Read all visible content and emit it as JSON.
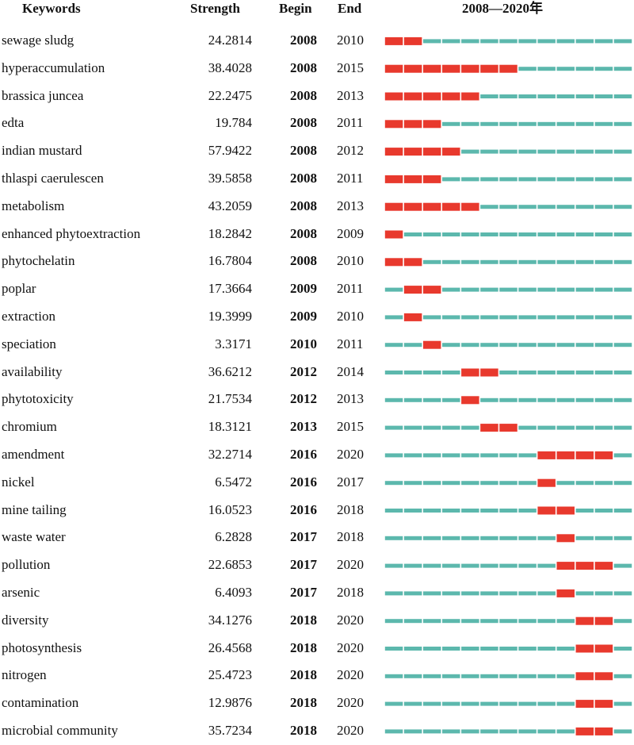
{
  "headers": {
    "keywords": "Keywords",
    "strength": "Strength",
    "begin": "Begin",
    "end": "End",
    "range": "2008—2020年"
  },
  "colors": {
    "burst": "#e8392d",
    "normal": "#5cb8ad"
  },
  "chart_data": {
    "type": "table",
    "title": "",
    "year_range": [
      2008,
      2020
    ],
    "columns": [
      "Keywords",
      "Strength",
      "Begin",
      "End"
    ],
    "rows": [
      {
        "keyword": "sewage sludg",
        "strength": "24.2814",
        "begin": "2008",
        "end": "2010"
      },
      {
        "keyword": "hyperaccumulation",
        "strength": "38.4028",
        "begin": "2008",
        "end": "2015"
      },
      {
        "keyword": "brassica juncea",
        "strength": "22.2475",
        "begin": "2008",
        "end": "2013"
      },
      {
        "keyword": "edta",
        "strength": "19.784",
        "begin": "2008",
        "end": "2011"
      },
      {
        "keyword": "indian mustard",
        "strength": "57.9422",
        "begin": "2008",
        "end": "2012"
      },
      {
        "keyword": "thlaspi caerulescen",
        "strength": "39.5858",
        "begin": "2008",
        "end": "2011"
      },
      {
        "keyword": "metabolism",
        "strength": "43.2059",
        "begin": "2008",
        "end": "2013"
      },
      {
        "keyword": "enhanced phytoextraction",
        "strength": "18.2842",
        "begin": "2008",
        "end": "2009"
      },
      {
        "keyword": "phytochelatin",
        "strength": "16.7804",
        "begin": "2008",
        "end": "2010"
      },
      {
        "keyword": "poplar",
        "strength": "17.3664",
        "begin": "2009",
        "end": "2011"
      },
      {
        "keyword": "extraction",
        "strength": "19.3999",
        "begin": "2009",
        "end": "2010"
      },
      {
        "keyword": "speciation",
        "strength": "3.3171",
        "begin": "2010",
        "end": "2011"
      },
      {
        "keyword": "availability",
        "strength": "36.6212",
        "begin": "2012",
        "end": "2014"
      },
      {
        "keyword": "phytotoxicity",
        "strength": "21.7534",
        "begin": "2012",
        "end": "2013"
      },
      {
        "keyword": "chromium",
        "strength": "18.3121",
        "begin": "2013",
        "end": "2015"
      },
      {
        "keyword": "amendment",
        "strength": "32.2714",
        "begin": "2016",
        "end": "2020"
      },
      {
        "keyword": "nickel",
        "strength": "6.5472",
        "begin": "2016",
        "end": "2017"
      },
      {
        "keyword": "mine tailing",
        "strength": "16.0523",
        "begin": "2016",
        "end": "2018"
      },
      {
        "keyword": "waste water",
        "strength": "6.2828",
        "begin": "2017",
        "end": "2018"
      },
      {
        "keyword": "pollution",
        "strength": "22.6853",
        "begin": "2017",
        "end": "2020"
      },
      {
        "keyword": "arsenic",
        "strength": "6.4093",
        "begin": "2017",
        "end": "2018"
      },
      {
        "keyword": "diversity",
        "strength": "34.1276",
        "begin": "2018",
        "end": "2020"
      },
      {
        "keyword": "photosynthesis",
        "strength": "26.4568",
        "begin": "2018",
        "end": "2020"
      },
      {
        "keyword": "nitrogen",
        "strength": "25.4723",
        "begin": "2018",
        "end": "2020"
      },
      {
        "keyword": "contamination",
        "strength": "12.9876",
        "begin": "2018",
        "end": "2020"
      },
      {
        "keyword": "microbial community",
        "strength": "35.7234",
        "begin": "2018",
        "end": "2020"
      }
    ]
  }
}
